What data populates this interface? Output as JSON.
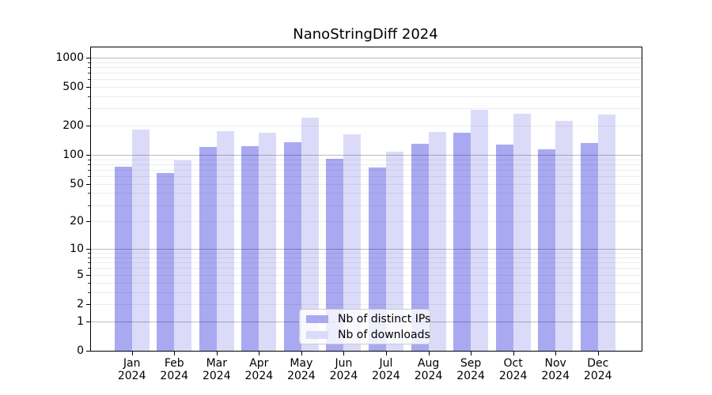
{
  "chart_data": {
    "type": "bar",
    "title": "NanoStringDiff 2024",
    "x_year": "2024",
    "categories": [
      "Jan",
      "Feb",
      "Mar",
      "Apr",
      "May",
      "Jun",
      "Jul",
      "Aug",
      "Sep",
      "Oct",
      "Nov",
      "Dec"
    ],
    "series": [
      {
        "name": "Nb of distinct IPs",
        "color": "#a9a9f2",
        "values": [
          76,
          65,
          121,
          124,
          135,
          91,
          74,
          130,
          169,
          127,
          114,
          132
        ]
      },
      {
        "name": "Nb of downloads",
        "color": "#dbdbf9",
        "values": [
          183,
          88,
          176,
          169,
          242,
          162,
          108,
          173,
          290,
          264,
          223,
          262
        ]
      }
    ],
    "y_ticks": [
      0,
      1,
      2,
      5,
      10,
      20,
      50,
      100,
      200,
      500,
      1000
    ],
    "y_scale": "log10(1+value)",
    "ylim": [
      0,
      1295
    ],
    "xlabel": "",
    "ylabel": "",
    "grid": "horizontal major (powers of 10) dark + minor (2-9 per decade) faint, drawn over bars",
    "legend_position": "bottom-center",
    "colors": {
      "background": "#ffffff",
      "major_grid": "rgba(0,0,0,0.26)",
      "minor_grid": "rgba(0,0,0,0.07)",
      "spine": "#000000",
      "legend_border": "#cccccc"
    }
  }
}
